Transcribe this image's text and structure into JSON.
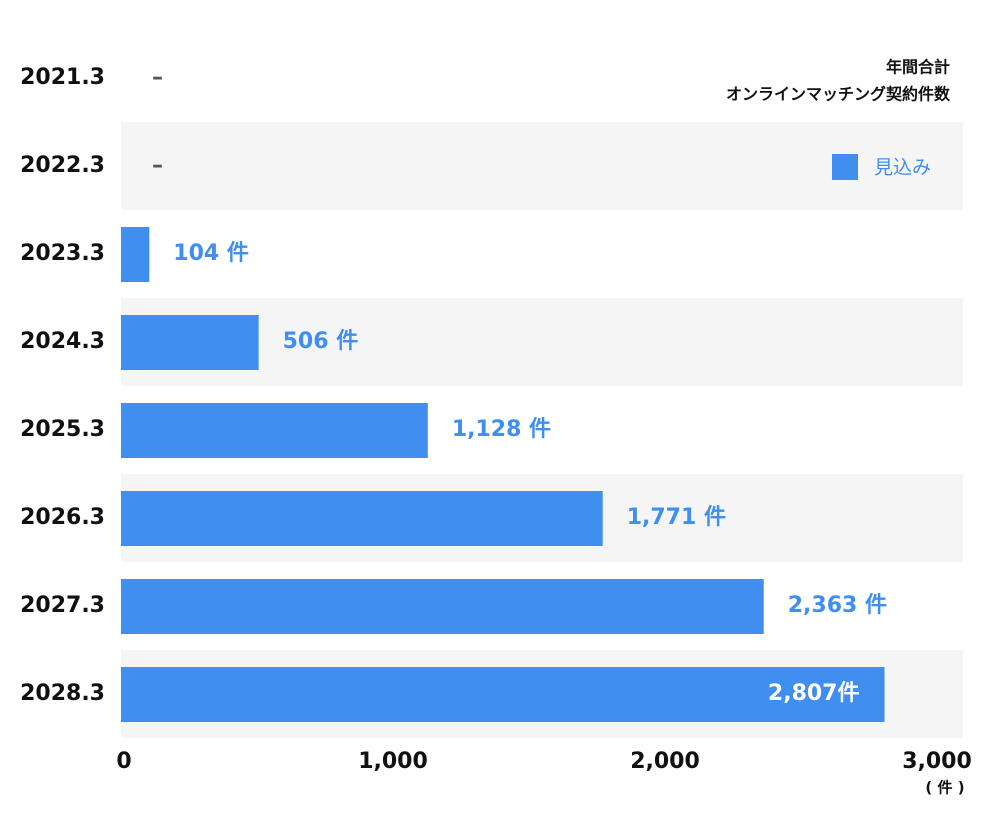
{
  "chart_data": {
    "type": "hbar",
    "title_lines": [
      "年間合計",
      "オンラインマッチング契約件数"
    ],
    "categories": [
      "2021.3",
      "2022.3",
      "2023.3",
      "2024.3",
      "2025.3",
      "2026.3",
      "2027.3",
      "2028.3"
    ],
    "series": [
      {
        "name": "見込み",
        "color": "#3f8ef0",
        "values": [
          null,
          null,
          104,
          506,
          1128,
          1771,
          2363,
          2807
        ],
        "value_labels": [
          "–",
          "–",
          "104 件",
          "506 件",
          "1,128 件",
          "1,771 件",
          "2,363 件",
          "2,807件"
        ]
      }
    ],
    "xlim": [
      0,
      3000
    ],
    "xticks": [
      0,
      {
        "value": 1000,
        "label": "1,000"
      },
      {
        "value": 2000,
        "label": "2,000"
      },
      {
        "value": 3000,
        "label": "3,000"
      }
    ],
    "x_unit": "( 件 )",
    "legend": "top-right",
    "row_shading": true
  }
}
